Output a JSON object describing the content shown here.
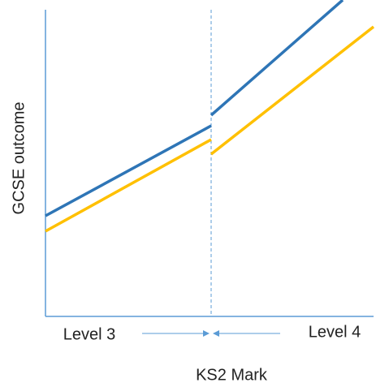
{
  "diagram": {
    "y_axis_label": "GCSE outcome",
    "x_axis_label": "KS2 Mark",
    "left_region": "Level 3",
    "right_region": "Level 4"
  }
}
